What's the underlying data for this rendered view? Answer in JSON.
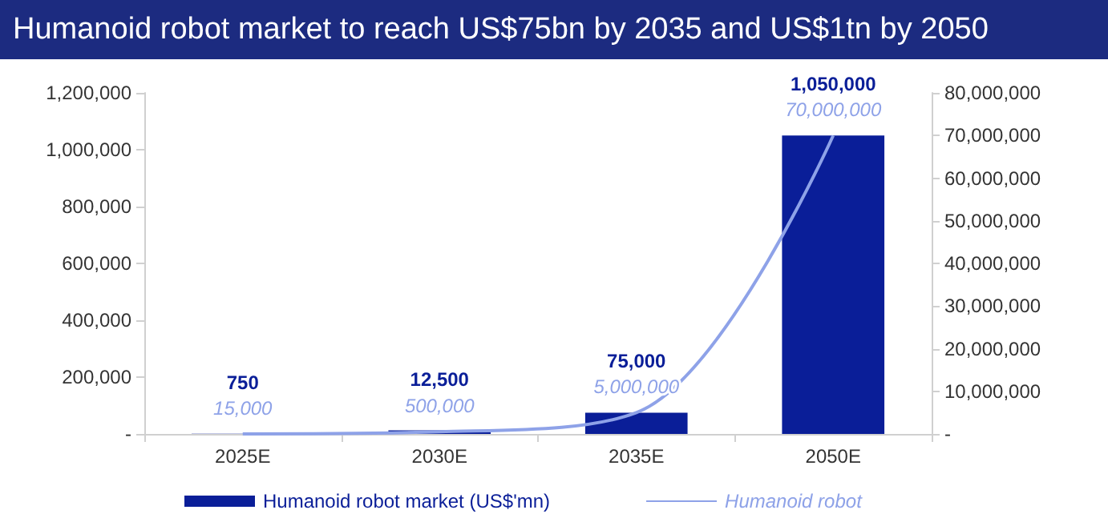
{
  "chart_data": {
    "type": "bar",
    "title": "Humanoid robot market to reach US$75bn by 2035 and US$1tn by 2050",
    "categories": [
      "2025E",
      "2030E",
      "2035E",
      "2050E"
    ],
    "series": [
      {
        "name": "Humanoid robot market (US$'mn)",
        "color": "#0a1e98",
        "values": [
          750,
          12500,
          75000,
          1050000
        ],
        "value_labels": [
          "750",
          "12,500",
          "75,000",
          "1,050,000"
        ]
      },
      {
        "name": "Humanoid robot",
        "type": "line",
        "axis": "y2",
        "color": "#8ea2e8",
        "values": [
          15000,
          500000,
          5000000,
          70000000
        ],
        "value_labels": [
          "15,000",
          "500,000",
          "5,000,000",
          "70,000,000"
        ]
      }
    ],
    "ylim": [
      0,
      1200000
    ],
    "yticks": [
      {
        "value": 0,
        "label": "-"
      },
      {
        "value": 200000,
        "label": "200,000"
      },
      {
        "value": 400000,
        "label": "400,000"
      },
      {
        "value": 600000,
        "label": "600,000"
      },
      {
        "value": 800000,
        "label": "800,000"
      },
      {
        "value": 1000000,
        "label": "1,000,000"
      },
      {
        "value": 1200000,
        "label": "1,200,000"
      }
    ],
    "y2lim": [
      0,
      80000000
    ],
    "y2ticks": [
      {
        "value": 0,
        "label": "-"
      },
      {
        "value": 10000000,
        "label": "10,000,000"
      },
      {
        "value": 20000000,
        "label": "20,000,000"
      },
      {
        "value": 30000000,
        "label": "30,000,000"
      },
      {
        "value": 40000000,
        "label": "40,000,000"
      },
      {
        "value": 50000000,
        "label": "50,000,000"
      },
      {
        "value": 60000000,
        "label": "60,000,000"
      },
      {
        "value": 70000000,
        "label": "70,000,000"
      },
      {
        "value": 80000000,
        "label": "80,000,000"
      }
    ],
    "marker": "none",
    "grid": false,
    "legend": "bottom"
  }
}
